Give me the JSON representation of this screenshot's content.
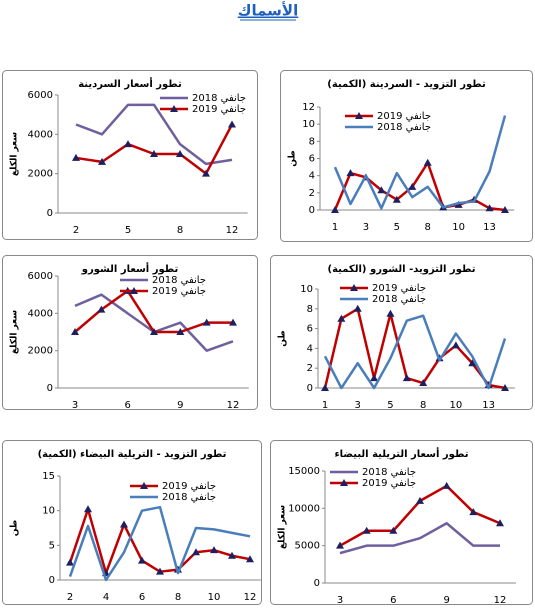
{
  "page_title": "الأسماك",
  "chart_data": [
    {
      "type": "line",
      "title": "تطور أسعار السردينة",
      "ylabel": "سعر الكلغ",
      "categories": [
        "2",
        null,
        "5",
        null,
        "8",
        null,
        "12"
      ],
      "ylim": [
        0,
        6000
      ],
      "yticks": [
        0,
        2000,
        4000,
        6000
      ],
      "grid": false,
      "series": [
        {
          "name": "جانفي 2018",
          "color": "#6f5f9e",
          "values": [
            4500,
            4000,
            5500,
            5500,
            3500,
            2500,
            2700
          ]
        },
        {
          "name": "جانفي 2019",
          "color": "#c00000",
          "marker": "triangle",
          "values": [
            2800,
            2600,
            3500,
            3000,
            3000,
            2000,
            4500
          ]
        }
      ]
    },
    {
      "type": "line",
      "title": "تطور التزويد - السردينة (الكمية)",
      "ylabel": "طن",
      "categories": [
        "1",
        null,
        "3",
        null,
        "5",
        null,
        "8",
        null,
        "10",
        null,
        "13",
        null
      ],
      "ylim": [
        0,
        12
      ],
      "yticks": [
        0,
        2,
        4,
        6,
        8,
        10,
        12
      ],
      "grid": false,
      "series": [
        {
          "name": "جانفي 2019",
          "color": "#c00000",
          "marker": "triangle",
          "values": [
            0,
            4.3,
            3.8,
            2.3,
            1.2,
            2.7,
            5.5,
            0.3,
            0.6,
            1.2,
            0.2,
            0
          ]
        },
        {
          "name": "جانفي 2018",
          "color": "#4a7ebb",
          "values": [
            5,
            0.7,
            4,
            0.2,
            4.3,
            1.5,
            2.7,
            0.3,
            0.8,
            1,
            4.5,
            11
          ]
        }
      ]
    },
    {
      "type": "line",
      "title": "تطور أسعار الشورو",
      "ylabel": "سعر الكلغ",
      "categories": [
        "3",
        null,
        "6",
        null,
        "9",
        null,
        "12"
      ],
      "ylim": [
        0,
        6000
      ],
      "yticks": [
        0,
        2000,
        4000,
        6000
      ],
      "grid": false,
      "series": [
        {
          "name": "جانفي 2018",
          "color": "#6f5f9e",
          "values": [
            4400,
            5000,
            4000,
            3000,
            3500,
            2000,
            2500
          ]
        },
        {
          "name": "جانفي 2019",
          "color": "#c00000",
          "marker": "triangle",
          "values": [
            3000,
            4200,
            5200,
            3000,
            3000,
            3500,
            3500
          ]
        }
      ]
    },
    {
      "type": "line",
      "title": "تطور التزويد- الشورو (الكمية)",
      "ylabel": "طن",
      "categories": [
        "1",
        null,
        "3",
        null,
        "5",
        null,
        "8",
        null,
        "10",
        null,
        "13",
        null
      ],
      "ylim": [
        0,
        10
      ],
      "yticks": [
        0,
        2,
        4,
        6,
        8,
        10
      ],
      "grid": false,
      "series": [
        {
          "name": "جانفي 2019",
          "color": "#c00000",
          "marker": "triangle",
          "values": [
            0,
            7,
            8,
            1,
            7.5,
            1,
            0.5,
            3,
            4.3,
            2.5,
            0.3,
            0
          ]
        },
        {
          "name": "جانفي 2018",
          "color": "#4a7ebb",
          "values": [
            3.2,
            0,
            2.5,
            0,
            3,
            6.8,
            7.3,
            2.8,
            5.5,
            3.2,
            0,
            5
          ]
        }
      ]
    },
    {
      "type": "line",
      "title": "تطور التزويد - التريلية البيضاء (الكمية)",
      "ylabel": "طن",
      "categories": [
        "2",
        null,
        "4",
        null,
        "6",
        null,
        "8",
        null,
        "10",
        null,
        "12"
      ],
      "ylim": [
        0,
        15
      ],
      "yticks": [
        0,
        5,
        10,
        15
      ],
      "grid": false,
      "series": [
        {
          "name": "جانفي 2019",
          "color": "#c00000",
          "marker": "triangle",
          "values": [
            2.5,
            10.2,
            1,
            8,
            2.8,
            1.2,
            1.5,
            4,
            4.3,
            3.5,
            3
          ]
        },
        {
          "name": "جانفي 2018",
          "color": "#4a7ebb",
          "values": [
            0.5,
            7.8,
            0,
            4,
            10,
            10.5,
            1,
            7.5,
            7.3,
            6.8,
            6.3
          ]
        }
      ]
    },
    {
      "type": "line",
      "title": "تطور أسعار التريلية البيضاء",
      "ylabel": "سعر الكلغ",
      "categories": [
        "3",
        null,
        "6",
        null,
        "9",
        null,
        "12"
      ],
      "ylim": [
        0,
        15000
      ],
      "yticks": [
        0,
        5000,
        10000,
        15000
      ],
      "grid": false,
      "series": [
        {
          "name": "جانفي 2018",
          "color": "#6f5f9e",
          "values": [
            4000,
            5000,
            5000,
            6000,
            8000,
            5000,
            5000
          ]
        },
        {
          "name": "جانفي 2019",
          "color": "#c00000",
          "marker": "triangle",
          "values": [
            5000,
            7000,
            7000,
            11000,
            13000,
            9500,
            8000
          ]
        }
      ]
    }
  ]
}
